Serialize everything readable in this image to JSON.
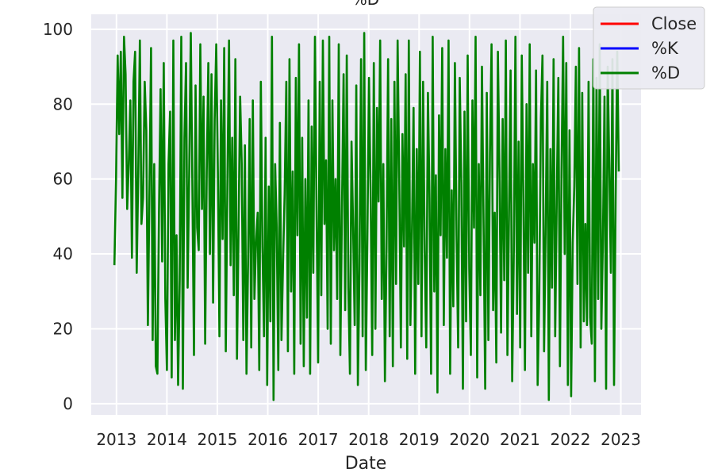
{
  "chart_data": {
    "type": "line",
    "title": "%D",
    "xlabel": "Date",
    "ylabel": "",
    "x_range": [
      2012.5,
      2023.4
    ],
    "ylim": [
      -3,
      104
    ],
    "xticks": [
      2013,
      2014,
      2015,
      2016,
      2017,
      2018,
      2019,
      2020,
      2021,
      2022,
      2023
    ],
    "xtick_labels": [
      "2013",
      "2014",
      "2015",
      "2016",
      "2017",
      "2018",
      "2019",
      "2020",
      "2021",
      "2022",
      "2023"
    ],
    "yticks": [
      0,
      20,
      40,
      60,
      80,
      100
    ],
    "ytick_labels": [
      "0",
      "20",
      "40",
      "60",
      "80",
      "100"
    ],
    "grid": true,
    "background": "#eaeaf2",
    "legend_position": "upper-right",
    "x_start": 2012.96,
    "x_end": 2022.96,
    "series": [
      {
        "name": "Close",
        "color": "#ff0000",
        "visible": false,
        "values": []
      },
      {
        "name": "%K",
        "color": "#0000ff",
        "visible": false,
        "values": []
      },
      {
        "name": "%D",
        "color": "#008000",
        "visible": true,
        "values": [
          37,
          60,
          93,
          72,
          94,
          55,
          98,
          88,
          52,
          64,
          81,
          39,
          86,
          94,
          35,
          62,
          97,
          48,
          55,
          86,
          73,
          21,
          57,
          95,
          17,
          64,
          10,
          8,
          51,
          84,
          38,
          91,
          28,
          9,
          64,
          78,
          7,
          97,
          17,
          45,
          5,
          33,
          98,
          4,
          71,
          91,
          31,
          62,
          99,
          58,
          13,
          85,
          47,
          41,
          96,
          52,
          82,
          16,
          62,
          91,
          40,
          88,
          27,
          76,
          96,
          62,
          18,
          81,
          44,
          95,
          14,
          58,
          97,
          37,
          71,
          29,
          92,
          12,
          47,
          82,
          64,
          17,
          69,
          8,
          38,
          76,
          15,
          81,
          28,
          43,
          51,
          9,
          86,
          42,
          18,
          71,
          5,
          58,
          22,
          98,
          1,
          64,
          47,
          9,
          75,
          17,
          38,
          56,
          86,
          14,
          92,
          30,
          62,
          8,
          87,
          45,
          96,
          16,
          71,
          10,
          60,
          23,
          81,
          8,
          74,
          35,
          98,
          52,
          11,
          86,
          29,
          97,
          48,
          65,
          20,
          98,
          16,
          81,
          41,
          60,
          28,
          96,
          13,
          51,
          88,
          25,
          93,
          31,
          8,
          70,
          47,
          21,
          85,
          5,
          36,
          92,
          18,
          99,
          9,
          44,
          87,
          57,
          13,
          91,
          20,
          79,
          54,
          97,
          28,
          64,
          6,
          41,
          92,
          18,
          76,
          10,
          86,
          32,
          97,
          59,
          15,
          72,
          42,
          88,
          12,
          97,
          21,
          46,
          79,
          8,
          68,
          32,
          94,
          18,
          86,
          41,
          15,
          83,
          55,
          8,
          98,
          30,
          61,
          3,
          77,
          45,
          95,
          21,
          68,
          39,
          97,
          8,
          57,
          26,
          91,
          45,
          15,
          87,
          59,
          4,
          78,
          22,
          93,
          36,
          13,
          81,
          47,
          98,
          7,
          64,
          29,
          90,
          49,
          4,
          83,
          17,
          67,
          96,
          25,
          51,
          11,
          94,
          62,
          19,
          76,
          33,
          97,
          13,
          51,
          89,
          6,
          41,
          98,
          24,
          70,
          15,
          93,
          55,
          9,
          80,
          35,
          96,
          18,
          64,
          43,
          89,
          5,
          28,
          76,
          93,
          14,
          47,
          86,
          1,
          68,
          31,
          92,
          18,
          55,
          87,
          10,
          62,
          98,
          40,
          91,
          5,
          73,
          2,
          43,
          58,
          90,
          32,
          95,
          15,
          83,
          22,
          48,
          21,
          86,
          23,
          16,
          92,
          6,
          87,
          28,
          96,
          20,
          44,
          82,
          4,
          90,
          63,
          35,
          92,
          5,
          55,
          94,
          62
        ]
      }
    ]
  },
  "legend": {
    "items": [
      {
        "label": "Close",
        "color": "#ff0000"
      },
      {
        "label": "%K",
        "color": "#0000ff"
      },
      {
        "label": "%D",
        "color": "#008000"
      }
    ]
  }
}
